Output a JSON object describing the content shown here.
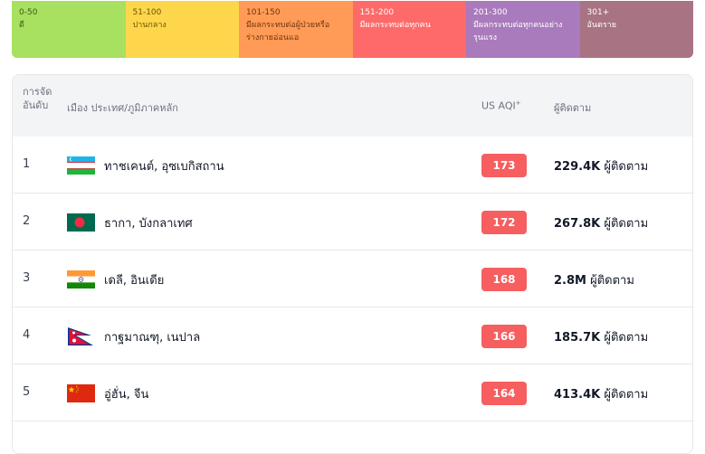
{
  "legend": [
    {
      "range": "0-50",
      "desc": "ดี",
      "color": "#a8e05f",
      "text_color": "#3d5a12"
    },
    {
      "range": "51-100",
      "desc": "ปานกลาง",
      "color": "#fdd64b",
      "text_color": "#6b5408"
    },
    {
      "range": "101-150",
      "desc": "มีผลกระทบต่อผู้ป่วยหรือร่างกายอ่อนแอ",
      "color": "#ff9b57",
      "text_color": "#6e3510"
    },
    {
      "range": "151-200",
      "desc": "มีผลกระทบต่อทุกคน",
      "color": "#fe6a69",
      "text_color": "#ffffff"
    },
    {
      "range": "201-300",
      "desc": "มีผลกระทบต่อทุกคนอย่างรุนแรง",
      "color": "#a97abc",
      "text_color": "#ffffff"
    },
    {
      "range": "301+",
      "desc": "อันตราย",
      "color": "#a87383",
      "text_color": "#ffffff"
    }
  ],
  "table": {
    "headers": {
      "rank": "การจัดอันดับ",
      "city": "เมือง ประเทศ/ภูมิภาคหลัก",
      "aqi": "US AQI",
      "aqi_mark": "+",
      "followers": "ผู้ติดตาม"
    },
    "followers_suffix": "ผู้ติดตาม",
    "rows": [
      {
        "rank": "1",
        "city": "ทาชเคนต์, อุซเบกิสถาน",
        "aqi": "173",
        "followers": "229.4K",
        "flag": "uzbekistan-flag-icon"
      },
      {
        "rank": "2",
        "city": "ธากา, บังกลาเทศ",
        "aqi": "172",
        "followers": "267.8K",
        "flag": "bangladesh-flag-icon"
      },
      {
        "rank": "3",
        "city": "เดลี, อินเดีย",
        "aqi": "168",
        "followers": "2.8M",
        "flag": "india-flag-icon"
      },
      {
        "rank": "4",
        "city": "กาฐมาณฑุ, เนปาล",
        "aqi": "166",
        "followers": "185.7K",
        "flag": "nepal-flag-icon"
      },
      {
        "rank": "5",
        "city": "อู่ฮั่น, จีน",
        "aqi": "164",
        "followers": "413.4K",
        "flag": "china-flag-icon"
      }
    ]
  }
}
